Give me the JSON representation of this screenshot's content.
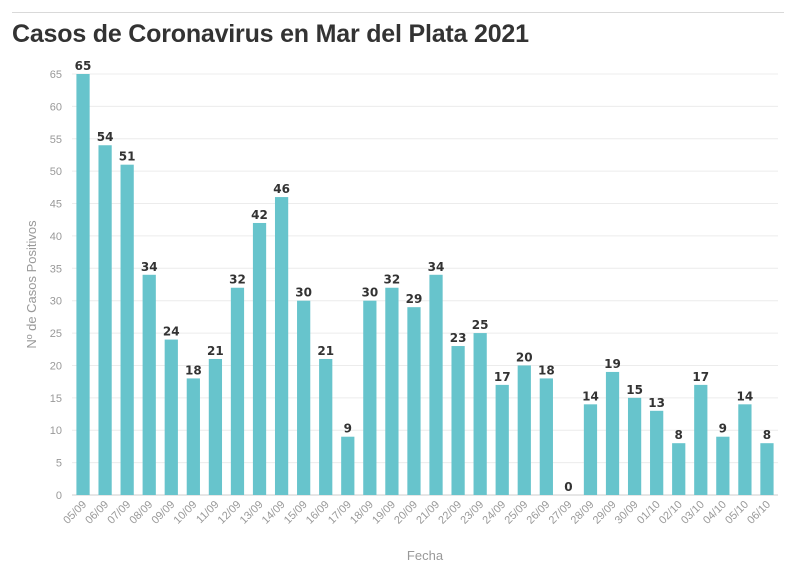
{
  "chart_data": {
    "type": "bar",
    "title": "Casos de Coronavirus en Mar del Plata 2021",
    "xlabel": "Fecha",
    "ylabel": "Nº de Casos Positivos",
    "ylim": [
      0,
      65
    ],
    "yticks": [
      0,
      5,
      10,
      15,
      20,
      25,
      30,
      35,
      40,
      45,
      50,
      55,
      60,
      65
    ],
    "grid": true,
    "color": "#67c4cc",
    "categories": [
      "05/09",
      "06/09",
      "07/09",
      "08/09",
      "09/09",
      "10/09",
      "11/09",
      "12/09",
      "13/09",
      "14/09",
      "15/09",
      "16/09",
      "17/09",
      "18/09",
      "19/09",
      "20/09",
      "21/09",
      "22/09",
      "23/09",
      "24/09",
      "25/09",
      "26/09",
      "27/09",
      "28/09",
      "29/09",
      "30/09",
      "01/10",
      "02/10",
      "03/10",
      "04/10",
      "05/10",
      "06/10"
    ],
    "values": [
      65,
      54,
      51,
      34,
      24,
      18,
      21,
      32,
      42,
      46,
      30,
      21,
      9,
      30,
      32,
      29,
      34,
      23,
      25,
      17,
      20,
      18,
      0,
      14,
      19,
      15,
      13,
      8,
      17,
      9,
      14,
      8
    ]
  }
}
